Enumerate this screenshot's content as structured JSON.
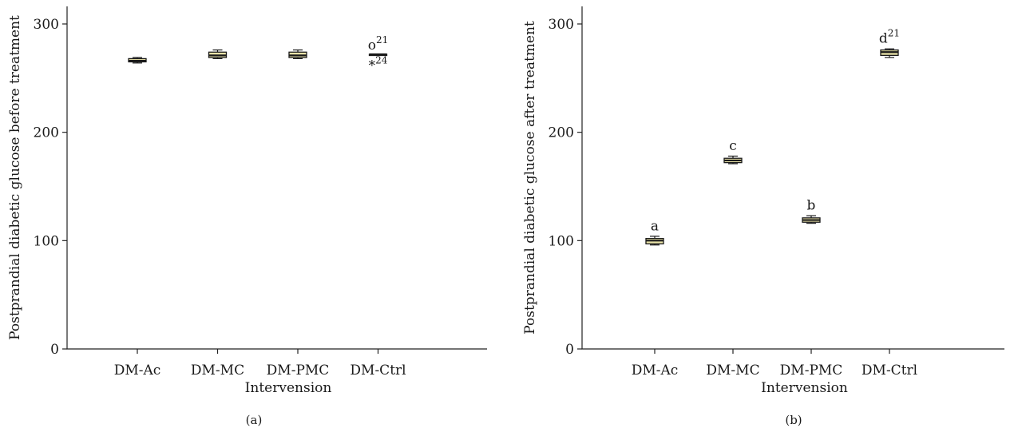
{
  "chart_data": [
    {
      "type": "box",
      "panel_label": "(a)",
      "xlabel": "Intervension",
      "ylabel": "Postprandial diabetic glucose before treatment",
      "ylim": [
        0,
        300
      ],
      "yticks": [
        0,
        100,
        200,
        300
      ],
      "categories": [
        "DM-Ac",
        "DM-MC",
        "DM-PMC",
        "DM-Ctrl"
      ],
      "boxes": [
        {
          "category": "DM-Ac",
          "min": 264,
          "q1": 265,
          "median": 266,
          "q3": 268,
          "max": 269
        },
        {
          "category": "DM-MC",
          "min": 268,
          "q1": 269,
          "median": 271,
          "q3": 274,
          "max": 276
        },
        {
          "category": "DM-PMC",
          "min": 268,
          "q1": 269,
          "median": 271,
          "q3": 274,
          "max": 276
        },
        {
          "category": "DM-Ctrl",
          "min": 271,
          "q1": 271,
          "median": 272,
          "q3": 272,
          "max": 272
        }
      ],
      "annotations": [
        {
          "category": "DM-Ctrl",
          "symbol": "o",
          "sup": "21",
          "value": 281
        },
        {
          "category": "DM-Ctrl",
          "symbol": "*",
          "sup": "24",
          "value": 262
        }
      ]
    },
    {
      "type": "box",
      "panel_label": "(b)",
      "xlabel": "Intervension",
      "ylabel": "Postprandial diabetic glucose after treatment",
      "ylim": [
        0,
        300
      ],
      "yticks": [
        0,
        100,
        200,
        300
      ],
      "categories": [
        "DM-Ac",
        "DM-MC",
        "DM-PMC",
        "DM-Ctrl"
      ],
      "boxes": [
        {
          "category": "DM-Ac",
          "min": 96,
          "q1": 97,
          "median": 100,
          "q3": 102,
          "max": 104
        },
        {
          "category": "DM-MC",
          "min": 171,
          "q1": 172,
          "median": 174,
          "q3": 176,
          "max": 178
        },
        {
          "category": "DM-PMC",
          "min": 116,
          "q1": 117,
          "median": 119,
          "q3": 121,
          "max": 123
        },
        {
          "category": "DM-Ctrl",
          "min": 269,
          "q1": 271,
          "median": 274,
          "q3": 276,
          "max": 277
        }
      ],
      "annotations": [
        {
          "category": "DM-Ac",
          "symbol": "a",
          "sup": "",
          "value": 114
        },
        {
          "category": "DM-MC",
          "symbol": "c",
          "sup": "",
          "value": 188
        },
        {
          "category": "DM-PMC",
          "symbol": "b",
          "sup": "",
          "value": 133
        },
        {
          "category": "DM-Ctrl",
          "symbol": "d",
          "sup": "21",
          "value": 287
        }
      ]
    }
  ]
}
